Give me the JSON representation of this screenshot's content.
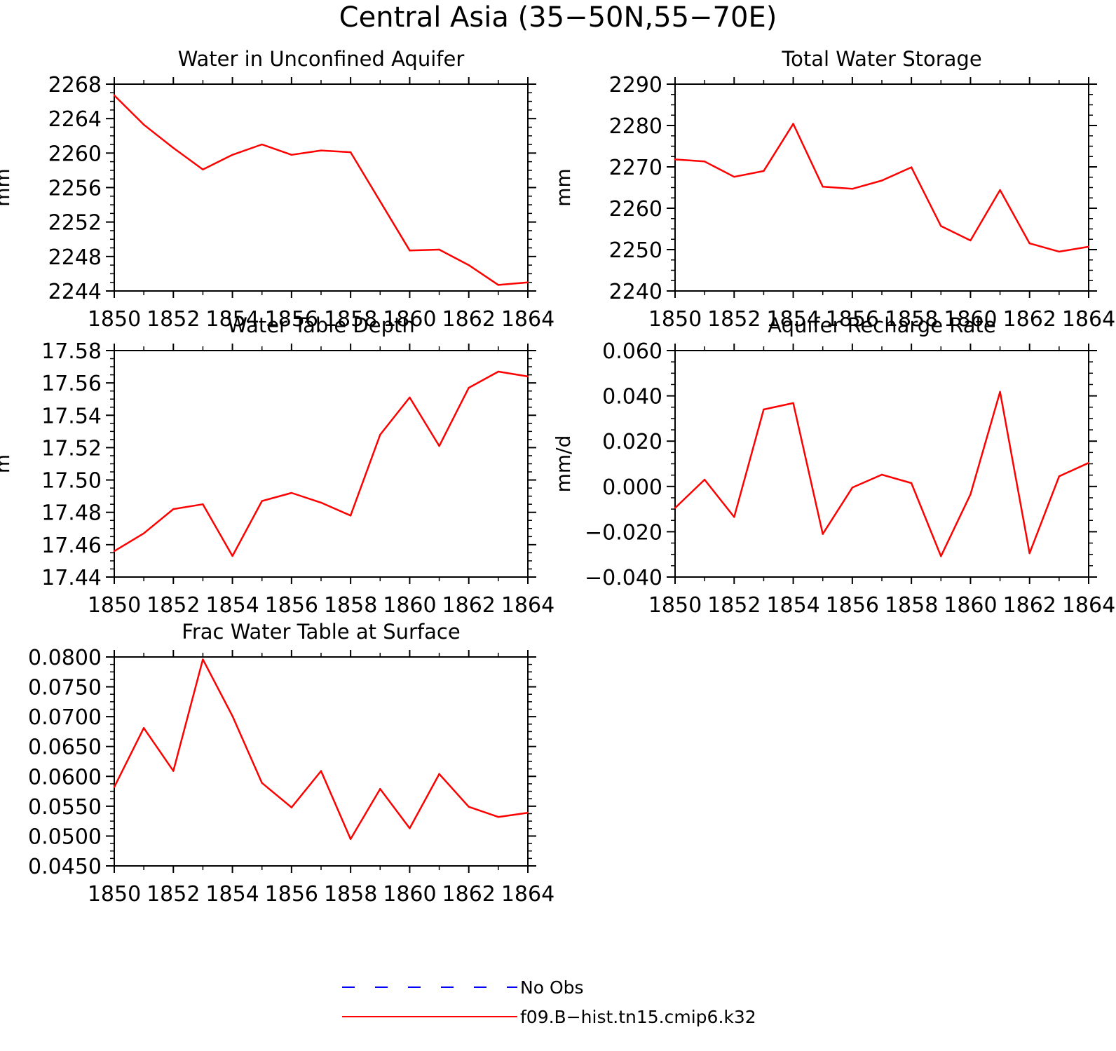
{
  "figure": {
    "title": "Central Asia (35−50N,55−70E)"
  },
  "legend": [
    {
      "label": "No Obs",
      "color": "#0000ff",
      "style": "dashed"
    },
    {
      "label": "f09.B−hist.tn15.cmip6.k32",
      "color": "#ff0000",
      "style": "solid"
    }
  ],
  "chart_data": [
    {
      "type": "line",
      "title": "Water in Unconfined Aquifer",
      "ylabel": "mm",
      "xlim": [
        1850,
        1864
      ],
      "ylim": [
        2244,
        2268
      ],
      "x_ticks": [
        "1850",
        "1852",
        "1854",
        "1856",
        "1858",
        "1860",
        "1862",
        "1864"
      ],
      "y_ticks": [
        "2244",
        "2248",
        "2252",
        "2256",
        "2260",
        "2264",
        "2268"
      ],
      "x": [
        1850,
        1851,
        1852,
        1853,
        1854,
        1855,
        1856,
        1857,
        1858,
        1859,
        1860,
        1861,
        1862,
        1863,
        1864
      ],
      "series": [
        {
          "color": "#ff0000",
          "values": [
            2266.7,
            2263.3,
            2260.6,
            2258.1,
            2259.8,
            2261.0,
            2259.8,
            2260.3,
            2260.1,
            2254.4,
            2248.7,
            2248.8,
            2247.0,
            2244.7,
            2245.0
          ]
        }
      ]
    },
    {
      "type": "line",
      "title": "Total Water Storage",
      "ylabel": "mm",
      "xlim": [
        1850,
        1864
      ],
      "ylim": [
        2240,
        2290
      ],
      "x_ticks": [
        "1850",
        "1852",
        "1854",
        "1856",
        "1858",
        "1860",
        "1862",
        "1864"
      ],
      "y_ticks": [
        "2240",
        "2250",
        "2260",
        "2270",
        "2280",
        "2290"
      ],
      "x": [
        1850,
        1851,
        1852,
        1853,
        1854,
        1855,
        1856,
        1857,
        1858,
        1859,
        1860,
        1861,
        1862,
        1863,
        1864
      ],
      "series": [
        {
          "color": "#ff0000",
          "values": [
            2271.8,
            2271.3,
            2267.6,
            2269.0,
            2280.4,
            2265.2,
            2264.7,
            2266.7,
            2269.9,
            2255.7,
            2252.2,
            2264.4,
            2251.5,
            2249.5,
            2250.7
          ]
        }
      ]
    },
    {
      "type": "line",
      "title": "Water Table Depth",
      "ylabel": "m",
      "xlim": [
        1850,
        1864
      ],
      "ylim": [
        17.44,
        17.58
      ],
      "x_ticks": [
        "1850",
        "1852",
        "1854",
        "1856",
        "1858",
        "1860",
        "1862",
        "1864"
      ],
      "y_ticks": [
        "17.44",
        "17.46",
        "17.48",
        "17.50",
        "17.52",
        "17.54",
        "17.56",
        "17.58"
      ],
      "x": [
        1850,
        1851,
        1852,
        1853,
        1854,
        1855,
        1856,
        1857,
        1858,
        1859,
        1860,
        1861,
        1862,
        1863,
        1864
      ],
      "series": [
        {
          "color": "#ff0000",
          "values": [
            17.456,
            17.467,
            17.482,
            17.485,
            17.453,
            17.487,
            17.492,
            17.486,
            17.478,
            17.528,
            17.551,
            17.521,
            17.557,
            17.567,
            17.564
          ]
        }
      ]
    },
    {
      "type": "line",
      "title": "Aquifer Recharge Rate",
      "ylabel": "mm/d",
      "xlim": [
        1850,
        1864
      ],
      "ylim": [
        -0.04,
        0.06
      ],
      "x_ticks": [
        "1850",
        "1852",
        "1854",
        "1856",
        "1858",
        "1860",
        "1862",
        "1864"
      ],
      "y_ticks": [
        "−0.040",
        "−0.020",
        "0.000",
        "0.020",
        "0.040",
        "0.060"
      ],
      "x": [
        1850,
        1851,
        1852,
        1853,
        1854,
        1855,
        1856,
        1857,
        1858,
        1859,
        1860,
        1861,
        1862,
        1863,
        1864
      ],
      "series": [
        {
          "color": "#ff0000",
          "values": [
            -0.0095,
            0.003,
            -0.0135,
            0.034,
            0.0368,
            -0.021,
            -0.0005,
            0.0052,
            0.0015,
            -0.0308,
            -0.0035,
            0.0418,
            -0.0295,
            0.0045,
            0.0104
          ]
        }
      ]
    },
    {
      "type": "line",
      "title": "Frac Water Table at Surface",
      "ylabel": "",
      "xlim": [
        1850,
        1864
      ],
      "ylim": [
        0.045,
        0.08
      ],
      "x_ticks": [
        "1850",
        "1852",
        "1854",
        "1856",
        "1858",
        "1860",
        "1862",
        "1864"
      ],
      "y_ticks": [
        "0.0450",
        "0.0500",
        "0.0550",
        "0.0600",
        "0.0650",
        "0.0700",
        "0.0750",
        "0.0800"
      ],
      "x": [
        1850,
        1851,
        1852,
        1853,
        1854,
        1855,
        1856,
        1857,
        1858,
        1859,
        1860,
        1861,
        1862,
        1863,
        1864
      ],
      "series": [
        {
          "color": "#ff0000",
          "values": [
            0.0582,
            0.0681,
            0.0609,
            0.0796,
            0.0701,
            0.0589,
            0.0548,
            0.0609,
            0.0495,
            0.0579,
            0.0513,
            0.0604,
            0.0549,
            0.0532,
            0.0539
          ]
        }
      ]
    }
  ]
}
